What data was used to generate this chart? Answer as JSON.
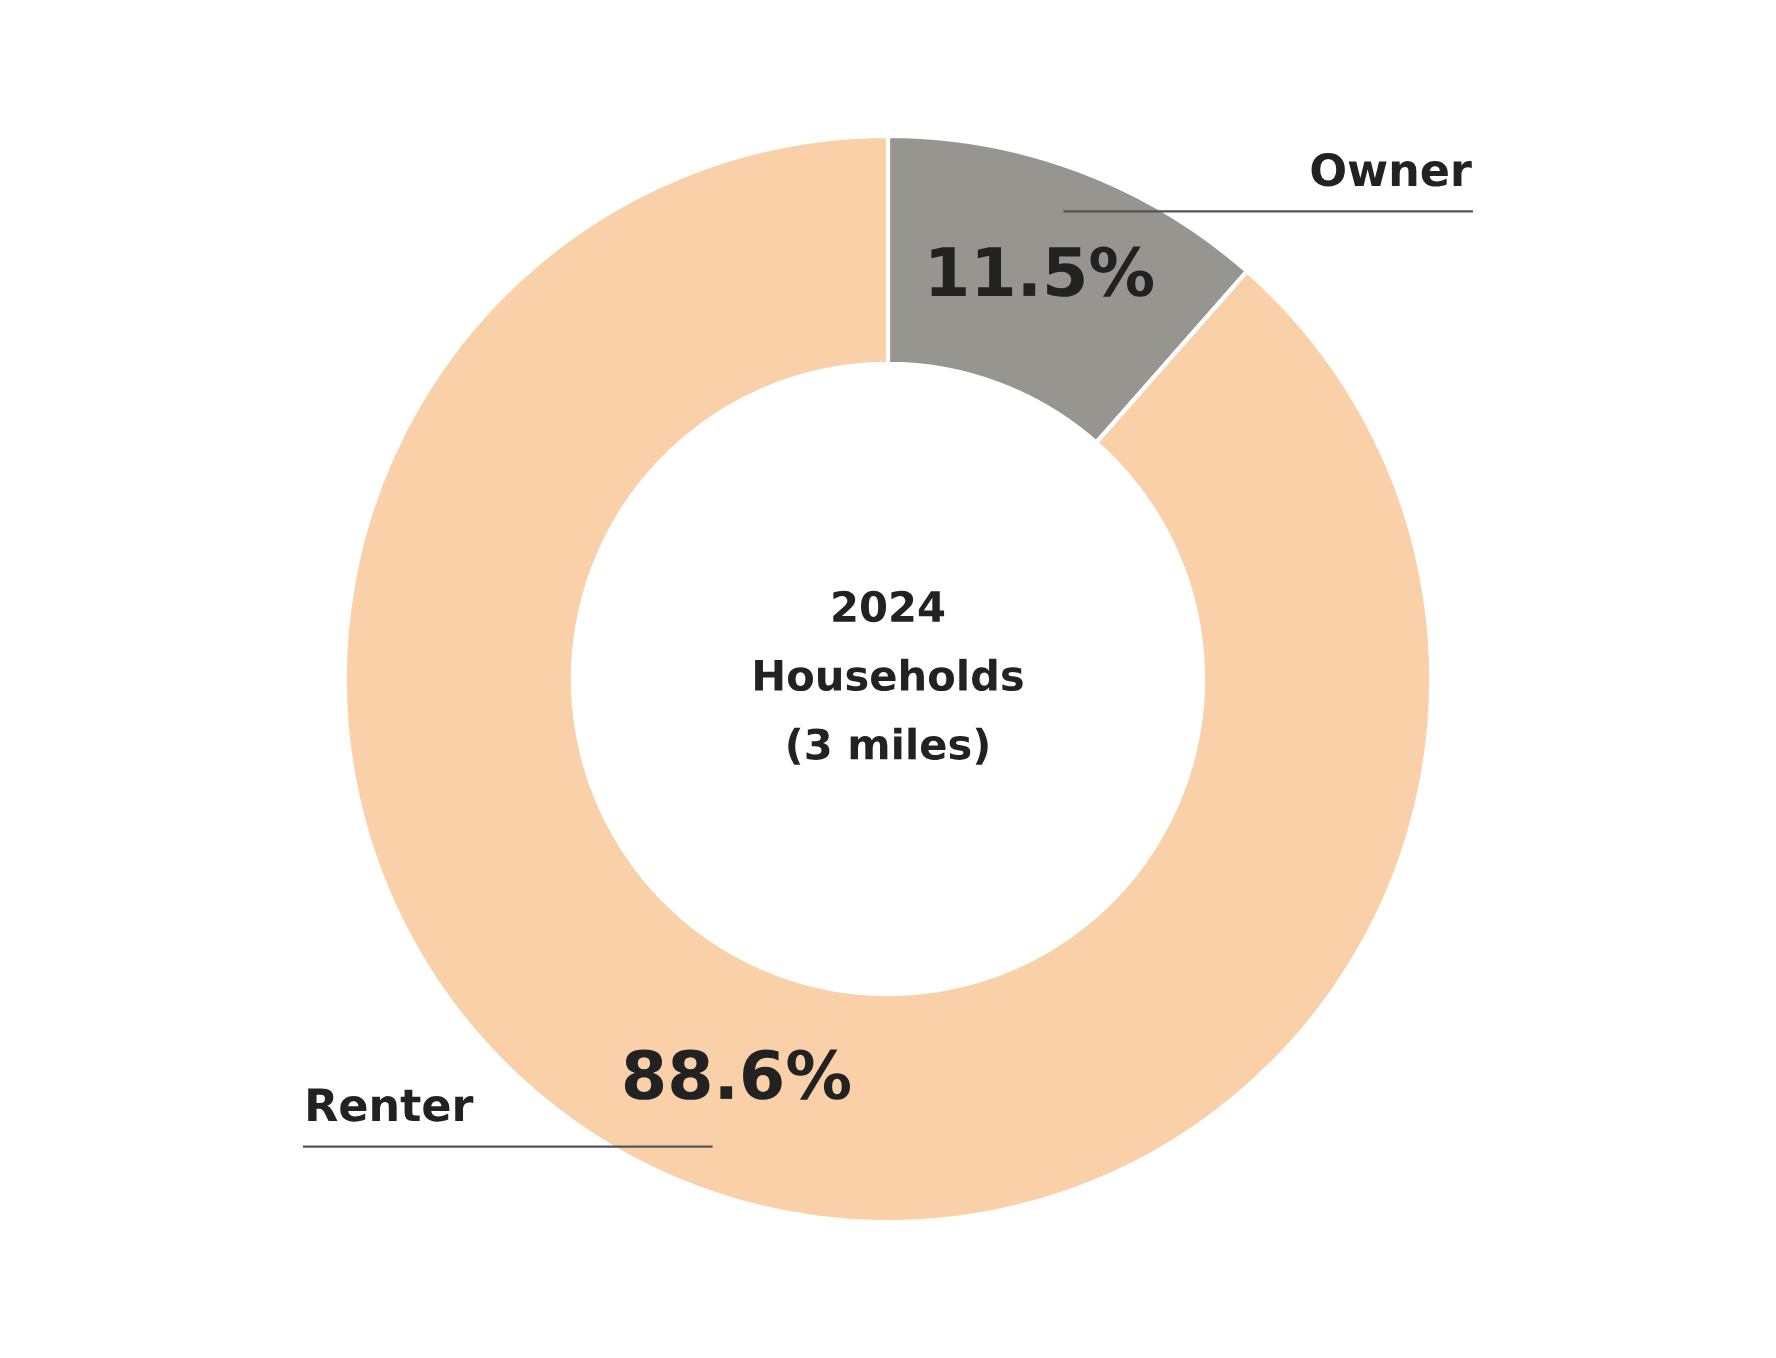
{
  "chart_data": {
    "type": "donut",
    "title": "2024\nHouseholds\n(3 miles)",
    "categories": [
      "Owner",
      "Renter"
    ],
    "values": [
      11.5,
      88.6
    ],
    "colors": [
      "#96958f",
      "#fad0a8"
    ],
    "value_labels": [
      "11.5%",
      "88.6%"
    ],
    "legend": false
  }
}
